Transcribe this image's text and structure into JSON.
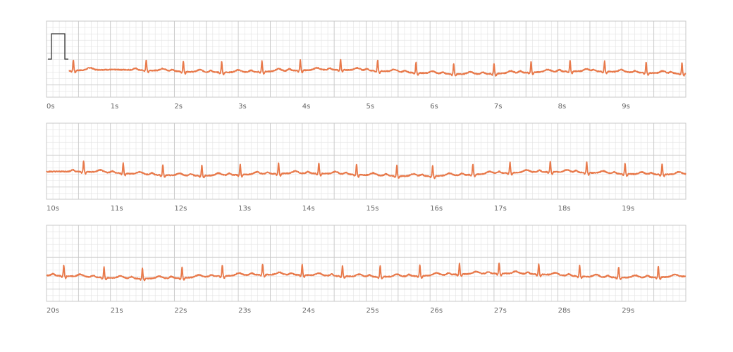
{
  "chart_data": {
    "type": "line",
    "grid": true,
    "colors": {
      "trace": "#e8794a",
      "grid_minor": "#e3e3e3",
      "grid_major": "#c8c8c8",
      "calibration": "#333333"
    },
    "strips": [
      {
        "x_range": [
          0,
          10
        ],
        "tick_labels": [
          "0s",
          "1s",
          "2s",
          "3s",
          "4s",
          "5s",
          "6s",
          "7s",
          "8s",
          "9s"
        ],
        "r_peaks": [
          0.42,
          1.56,
          2.14,
          2.74,
          3.37,
          3.97,
          4.6,
          5.18,
          5.78,
          6.37,
          7.0,
          7.58,
          8.19,
          8.73,
          9.38,
          9.94
        ]
      },
      {
        "x_range": [
          10,
          20
        ],
        "tick_labels": [
          "10s",
          "11s",
          "12s",
          "13s",
          "14s",
          "15s",
          "16s",
          "17s",
          "18s",
          "19s"
        ],
        "r_peaks": [
          10.58,
          11.2,
          11.82,
          12.43,
          13.03,
          13.63,
          14.26,
          14.85,
          15.48,
          16.04,
          16.67,
          17.25,
          17.88,
          18.45,
          19.05,
          19.63
        ]
      },
      {
        "x_range": [
          20,
          30
        ],
        "tick_labels": [
          "20s",
          "21s",
          "22s",
          "23s",
          "24s",
          "25s",
          "26s",
          "27s",
          "28s",
          "29s"
        ],
        "r_peaks": [
          20.27,
          20.9,
          21.5,
          22.12,
          22.75,
          23.38,
          24.0,
          24.63,
          25.22,
          25.84,
          26.46,
          27.08,
          27.7,
          28.34,
          28.95,
          29.57
        ]
      }
    ]
  }
}
